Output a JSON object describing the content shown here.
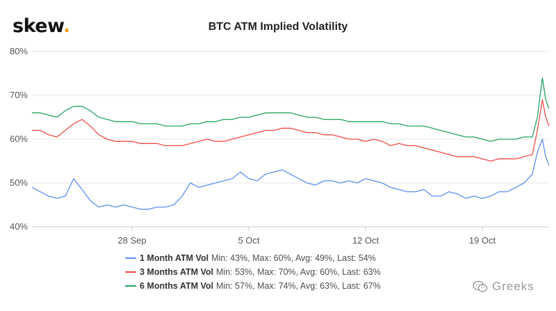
{
  "brand": {
    "name": "skew",
    "dot": ".",
    "dot_color": "#f0a11c"
  },
  "watermark": {
    "text": "Greeks",
    "icon": "wechat-icon"
  },
  "chart_data": {
    "type": "line",
    "title": "BTC ATM Implied Volatility",
    "xlabel": "",
    "ylabel": "",
    "ylim": [
      40,
      80
    ],
    "yticks": [
      40,
      50,
      60,
      70,
      80
    ],
    "ytick_labels": [
      "40%",
      "50%",
      "60%",
      "70%",
      "80%"
    ],
    "xlim": [
      0,
      31
    ],
    "xticks": [
      6,
      13,
      20,
      27
    ],
    "xtick_labels": [
      "28 Sep",
      "5 Oct",
      "12 Oct",
      "19 Oct"
    ],
    "grid": "horizontal",
    "x": [
      0,
      0.5,
      1,
      1.5,
      2,
      2.5,
      3,
      3.5,
      4,
      4.5,
      5,
      5.5,
      6,
      6.5,
      7,
      7.5,
      8,
      8.5,
      9,
      9.5,
      10,
      10.5,
      11,
      11.5,
      12,
      12.5,
      13,
      13.5,
      14,
      14.5,
      15,
      15.5,
      16,
      16.5,
      17,
      17.5,
      18,
      18.5,
      19,
      19.5,
      20,
      20.5,
      21,
      21.5,
      22,
      22.5,
      23,
      23.5,
      24,
      24.5,
      25,
      25.5,
      26,
      26.5,
      27,
      27.5,
      28,
      28.5,
      29,
      29.5,
      30,
      30.3,
      30.6,
      30.8,
      31
    ],
    "series": [
      {
        "name": "1 Month ATM Vol",
        "stats": "Min: 43%, Max: 60%, Avg: 49%, Last: 54%",
        "color": "#5b8ff0",
        "values": [
          49,
          48,
          47,
          46.5,
          47,
          51,
          48.5,
          46,
          44.5,
          45,
          44.5,
          45,
          44.5,
          44,
          44,
          44.5,
          44.5,
          45,
          47,
          50,
          49,
          49.5,
          50,
          50.5,
          51,
          52.5,
          51,
          50.5,
          52,
          52.5,
          53,
          52,
          51,
          50,
          49.5,
          50.5,
          50.5,
          50,
          50.5,
          50,
          51,
          50.5,
          50,
          49,
          48.5,
          48,
          48,
          48.5,
          47,
          47,
          48,
          47.5,
          46.5,
          47,
          46.5,
          47,
          48,
          48,
          49,
          50,
          52,
          57,
          60,
          56,
          54
        ]
      },
      {
        "name": "3 Months ATM Vol",
        "stats": "Min: 53%, Max: 70%, Avg: 60%, Last: 63%",
        "color": "#ef4a45",
        "values": [
          62,
          62,
          61,
          60.5,
          62,
          63.5,
          64.5,
          63,
          61,
          60,
          59.5,
          59.5,
          59.5,
          59,
          59,
          59,
          58.5,
          58.5,
          58.5,
          59,
          59.5,
          60,
          59.5,
          59.5,
          60,
          60.5,
          61,
          61.5,
          62,
          62,
          62.5,
          62.5,
          62,
          61.5,
          61.5,
          61,
          61,
          60.5,
          60,
          60,
          59.5,
          60,
          59.5,
          58.5,
          59,
          58.5,
          58.5,
          58,
          57.5,
          57,
          56.5,
          56,
          56,
          56,
          55.5,
          55,
          55.5,
          55.5,
          55.5,
          56,
          56.5,
          62,
          69,
          65,
          63
        ]
      },
      {
        "name": "6 Months ATM Vol",
        "stats": "Min: 57%, Max: 74%, Avg: 63%, Last: 67%",
        "color": "#23a45f",
        "values": [
          66,
          66,
          65.5,
          65,
          66.5,
          67.5,
          67.5,
          66.5,
          65,
          64.5,
          64,
          64,
          64,
          63.5,
          63.5,
          63.5,
          63,
          63,
          63,
          63.5,
          63.5,
          64,
          64,
          64.5,
          64.5,
          65,
          65,
          65.5,
          66,
          66,
          66,
          66,
          65.5,
          65,
          65,
          64.5,
          64.5,
          64.5,
          64,
          64,
          64,
          64,
          64,
          63.5,
          63.5,
          63,
          63,
          63,
          62.5,
          62,
          61.5,
          61,
          60.5,
          60.5,
          60,
          59.5,
          60,
          60,
          60,
          60.5,
          60.5,
          65,
          74,
          69,
          67
        ]
      }
    ]
  }
}
